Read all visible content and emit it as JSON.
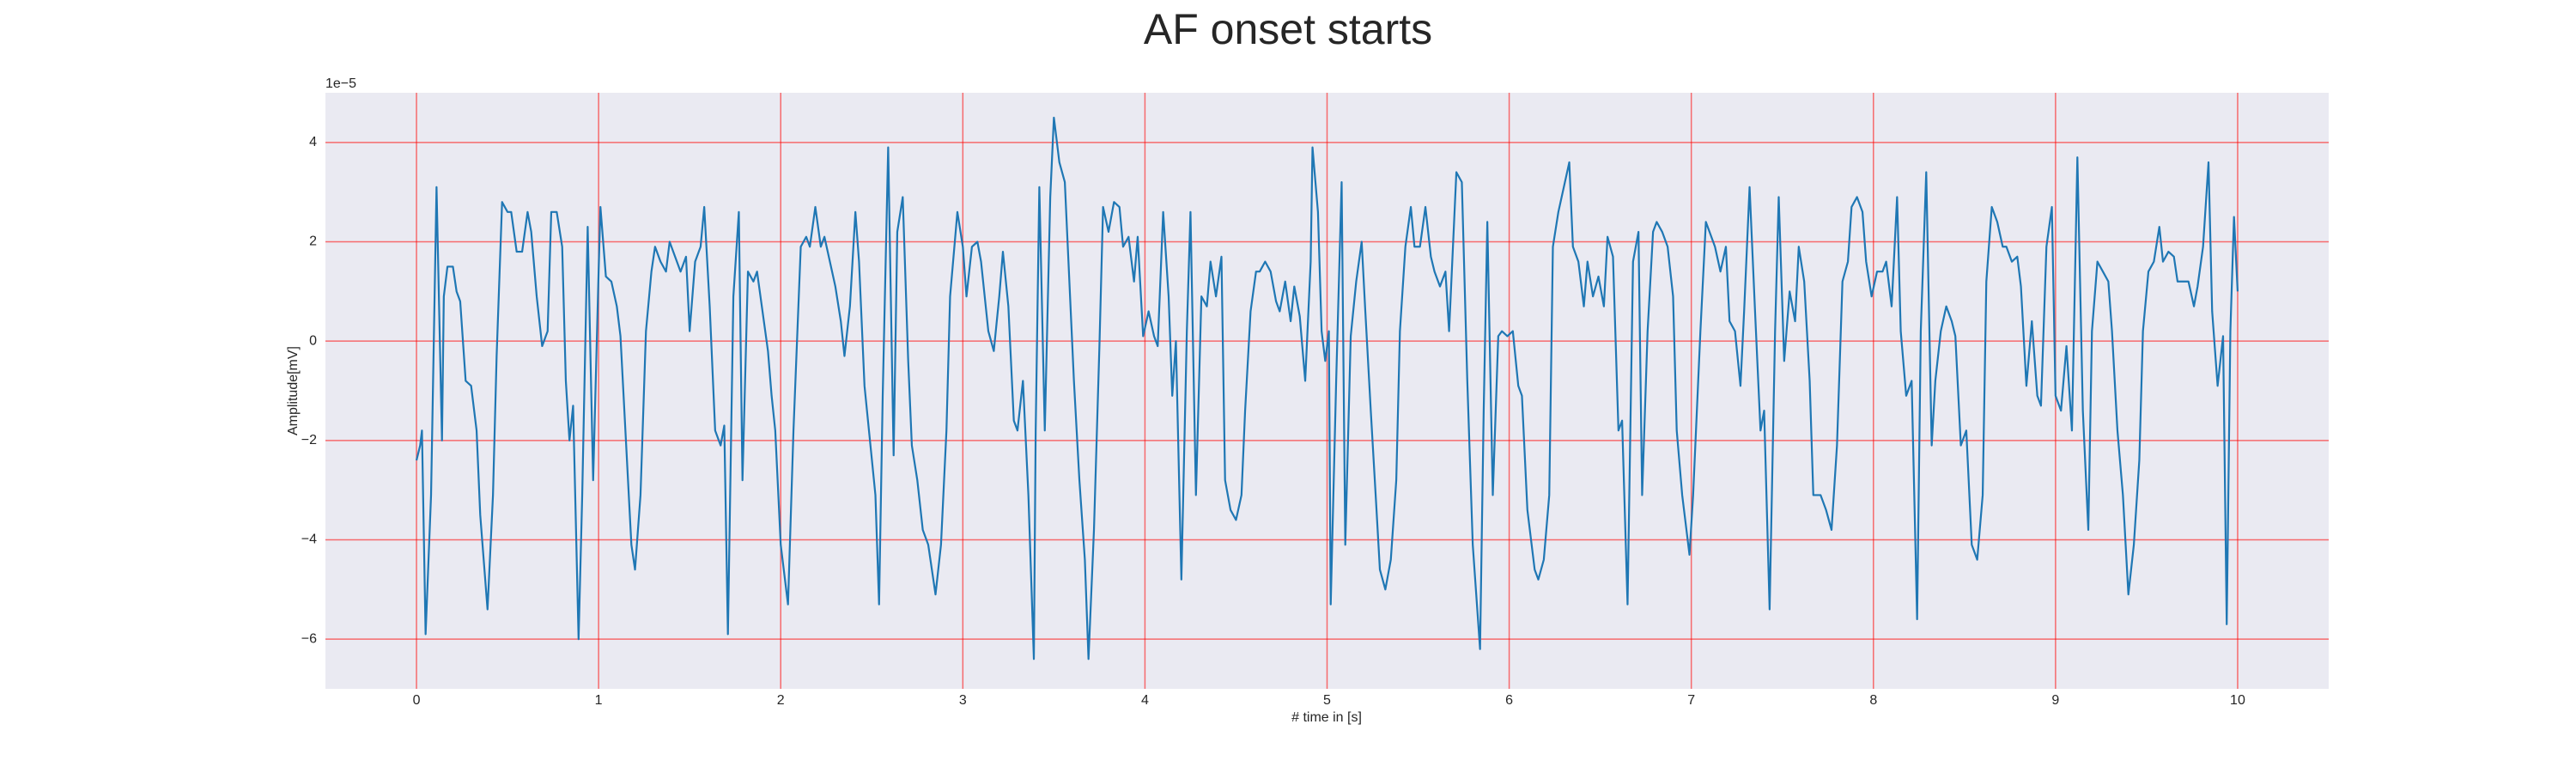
{
  "chart_data": {
    "type": "line",
    "title": "AF onset starts",
    "x_label": "# time in [s]",
    "y_label": "Amplitude[mV]",
    "y_offset_label": "1e−5",
    "color": "#1f77b4",
    "grid": true,
    "grid_color": "#ff0000",
    "xlim": [
      -0.5,
      10.5
    ],
    "xticks": [
      0,
      1,
      2,
      3,
      4,
      5,
      6,
      7,
      8,
      9,
      10
    ],
    "ylim": [
      -7,
      5
    ],
    "yticks": [
      {
        "value": -6,
        "label": "−6"
      },
      {
        "value": -4,
        "label": "−4"
      },
      {
        "value": -2,
        "label": "−2"
      },
      0,
      2,
      4
    ],
    "x": [
      0,
      0.02,
      0.03,
      0.05,
      0.08,
      0.11,
      0.14,
      0.15,
      0.17,
      0.2,
      0.22,
      0.24,
      0.27,
      0.3,
      0.33,
      0.35,
      0.39,
      0.42,
      0.44,
      0.47,
      0.5,
      0.52,
      0.55,
      0.58,
      0.61,
      0.63,
      0.66,
      0.69,
      0.72,
      0.74,
      0.77,
      0.8,
      0.82,
      0.84,
      0.86,
      0.89,
      0.91,
      0.94,
      0.97,
      1.0,
      1.01,
      1.04,
      1.07,
      1.1,
      1.12,
      1.15,
      1.18,
      1.2,
      1.23,
      1.26,
      1.29,
      1.31,
      1.34,
      1.37,
      1.39,
      1.42,
      1.45,
      1.48,
      1.5,
      1.53,
      1.56,
      1.58,
      1.61,
      1.64,
      1.67,
      1.69,
      1.71,
      1.74,
      1.77,
      1.79,
      1.82,
      1.85,
      1.87,
      1.9,
      1.93,
      1.95,
      1.97,
      2.0,
      2.04,
      2.07,
      2.11,
      2.14,
      2.16,
      2.19,
      2.22,
      2.24,
      2.27,
      2.3,
      2.33,
      2.35,
      2.38,
      2.41,
      2.43,
      2.46,
      2.49,
      2.52,
      2.54,
      2.56,
      2.59,
      2.62,
      2.64,
      2.67,
      2.7,
      2.72,
      2.75,
      2.78,
      2.81,
      2.85,
      2.88,
      2.91,
      2.93,
      2.97,
      3.0,
      3.02,
      3.05,
      3.08,
      3.1,
      3.14,
      3.17,
      3.2,
      3.22,
      3.25,
      3.28,
      3.3,
      3.33,
      3.36,
      3.39,
      3.4,
      3.42,
      3.45,
      3.48,
      3.5,
      3.53,
      3.56,
      3.58,
      3.61,
      3.64,
      3.67,
      3.69,
      3.72,
      3.75,
      3.77,
      3.8,
      3.83,
      3.86,
      3.88,
      3.91,
      3.94,
      3.96,
      3.99,
      4.02,
      4.05,
      4.07,
      4.1,
      4.13,
      4.15,
      4.17,
      4.2,
      4.23,
      4.25,
      4.28,
      4.31,
      4.34,
      4.36,
      4.39,
      4.42,
      4.44,
      4.47,
      4.5,
      4.53,
      4.55,
      4.58,
      4.61,
      4.63,
      4.66,
      4.69,
      4.72,
      4.74,
      4.77,
      4.8,
      4.82,
      4.85,
      4.88,
      4.91,
      4.92,
      4.95,
      4.97,
      4.99,
      5.01,
      5.02,
      5.05,
      5.08,
      5.1,
      5.13,
      5.16,
      5.19,
      5.21,
      5.24,
      5.27,
      5.29,
      5.32,
      5.35,
      5.38,
      5.4,
      5.43,
      5.46,
      5.48,
      5.51,
      5.54,
      5.57,
      5.59,
      5.62,
      5.65,
      5.67,
      5.71,
      5.74,
      5.77,
      5.8,
      5.84,
      5.86,
      5.88,
      5.91,
      5.94,
      5.96,
      5.99,
      6.02,
      6.05,
      6.07,
      6.1,
      6.14,
      6.16,
      6.19,
      6.22,
      6.24,
      6.27,
      6.3,
      6.33,
      6.35,
      6.38,
      6.41,
      6.43,
      6.46,
      6.49,
      6.52,
      6.54,
      6.57,
      6.6,
      6.62,
      6.65,
      6.68,
      6.71,
      6.73,
      6.76,
      6.79,
      6.81,
      6.84,
      6.87,
      6.9,
      6.92,
      6.95,
      6.99,
      7.01,
      7.05,
      7.08,
      7.1,
      7.13,
      7.16,
      7.19,
      7.21,
      7.24,
      7.27,
      7.29,
      7.32,
      7.35,
      7.38,
      7.4,
      7.43,
      7.46,
      7.48,
      7.51,
      7.54,
      7.57,
      7.59,
      7.62,
      7.65,
      7.67,
      7.71,
      7.74,
      7.77,
      7.8,
      7.83,
      7.86,
      7.88,
      7.91,
      7.94,
      7.96,
      7.99,
      8.02,
      8.05,
      8.07,
      8.1,
      8.13,
      8.15,
      8.18,
      8.21,
      8.24,
      8.26,
      8.29,
      8.32,
      8.34,
      8.37,
      8.4,
      8.43,
      8.45,
      8.48,
      8.51,
      8.54,
      8.57,
      8.6,
      8.62,
      8.65,
      8.68,
      8.71,
      8.73,
      8.76,
      8.79,
      8.81,
      8.84,
      8.87,
      8.9,
      8.92,
      8.95,
      8.98,
      9.0,
      9.03,
      9.06,
      9.09,
      9.12,
      9.15,
      9.18,
      9.2,
      9.23,
      9.26,
      9.29,
      9.31,
      9.34,
      9.37,
      9.4,
      9.43,
      9.46,
      9.48,
      9.51,
      9.54,
      9.57,
      9.59,
      9.62,
      9.65,
      9.67,
      9.7,
      9.73,
      9.76,
      9.78,
      9.81,
      9.84,
      9.86,
      9.89,
      9.92,
      9.94,
      9.96,
      9.98,
      10
    ],
    "values": [
      -2.4,
      -2.1,
      -1.8,
      -5.9,
      -3.1,
      3.1,
      -2.0,
      0.9,
      1.5,
      1.5,
      1.0,
      0.8,
      -0.8,
      -0.9,
      -1.8,
      -3.5,
      -5.4,
      -3.1,
      -0.3,
      2.8,
      2.6,
      2.6,
      1.8,
      1.8,
      2.6,
      2.2,
      0.9,
      -0.1,
      0.2,
      2.6,
      2.6,
      1.9,
      -0.8,
      -2.0,
      -1.3,
      -6.0,
      -3.1,
      2.3,
      -2.8,
      1.4,
      2.7,
      1.3,
      1.2,
      0.7,
      0.1,
      -2.0,
      -4.1,
      -4.6,
      -3.1,
      0.2,
      1.4,
      1.9,
      1.6,
      1.4,
      2.0,
      1.7,
      1.4,
      1.7,
      0.2,
      1.6,
      1.9,
      2.7,
      0.7,
      -1.8,
      -2.1,
      -1.7,
      -5.9,
      0.9,
      2.6,
      -2.8,
      1.4,
      1.2,
      1.4,
      0.6,
      -0.2,
      -1.1,
      -1.8,
      -4.1,
      -5.3,
      -1.8,
      1.9,
      2.1,
      1.9,
      2.7,
      1.9,
      2.1,
      1.6,
      1.1,
      0.4,
      -0.3,
      0.7,
      2.6,
      1.6,
      -0.9,
      -2.0,
      -3.1,
      -5.3,
      -1.1,
      3.9,
      -2.3,
      2.2,
      2.9,
      -0.4,
      -2.1,
      -2.8,
      -3.8,
      -4.1,
      -5.1,
      -4.1,
      -1.8,
      0.9,
      2.6,
      1.9,
      0.9,
      1.9,
      2.0,
      1.6,
      0.2,
      -0.2,
      0.9,
      1.8,
      0.7,
      -1.6,
      -1.8,
      -0.8,
      -3.1,
      -6.4,
      -1.8,
      3.1,
      -1.8,
      2.9,
      4.5,
      3.6,
      3.2,
      1.6,
      -0.8,
      -2.8,
      -4.4,
      -6.4,
      -3.8,
      -0.1,
      2.7,
      2.2,
      2.8,
      2.7,
      1.9,
      2.1,
      1.2,
      2.1,
      0.1,
      0.6,
      0.1,
      -0.1,
      2.6,
      0.9,
      -1.1,
      0.0,
      -4.8,
      0.2,
      2.6,
      -3.1,
      0.9,
      0.7,
      1.6,
      0.9,
      1.7,
      -2.8,
      -3.4,
      -3.6,
      -3.1,
      -1.4,
      0.6,
      1.4,
      1.4,
      1.6,
      1.4,
      0.8,
      0.6,
      1.2,
      0.4,
      1.1,
      0.5,
      -0.8,
      1.6,
      3.9,
      2.6,
      0.2,
      -0.4,
      0.2,
      -5.3,
      -0.8,
      3.2,
      -4.1,
      0.1,
      1.2,
      2.0,
      0.6,
      -1.4,
      -3.3,
      -4.6,
      -5.0,
      -4.4,
      -2.8,
      0.2,
      1.9,
      2.7,
      1.9,
      1.9,
      2.7,
      1.7,
      1.4,
      1.1,
      1.4,
      0.2,
      3.4,
      3.2,
      -0.8,
      -4.1,
      -6.2,
      -1.4,
      2.4,
      -3.1,
      0.1,
      0.2,
      0.1,
      0.2,
      -0.9,
      -1.1,
      -3.4,
      -4.6,
      -4.8,
      -4.4,
      -3.1,
      1.9,
      2.6,
      3.1,
      3.6,
      1.9,
      1.6,
      0.7,
      1.6,
      0.9,
      1.3,
      0.7,
      2.1,
      1.7,
      -1.8,
      -1.6,
      -5.3,
      1.6,
      2.2,
      -3.1,
      0.2,
      2.2,
      2.4,
      2.2,
      1.9,
      0.9,
      -1.8,
      -3.1,
      -4.3,
      -3.1,
      0.2,
      2.4,
      2.2,
      1.9,
      1.4,
      1.9,
      0.4,
      0.2,
      -0.9,
      0.6,
      3.1,
      0.6,
      -1.8,
      -1.4,
      -5.4,
      0.2,
      2.9,
      -0.4,
      1.0,
      0.4,
      1.9,
      1.2,
      -0.8,
      -3.1,
      -3.1,
      -3.4,
      -3.8,
      -2.1,
      1.2,
      1.6,
      2.7,
      2.9,
      2.6,
      1.6,
      0.9,
      1.4,
      1.4,
      1.6,
      0.7,
      2.9,
      0.2,
      -1.1,
      -0.8,
      -5.6,
      0.2,
      3.4,
      -2.1,
      -0.8,
      0.2,
      0.7,
      0.4,
      0.1,
      -2.1,
      -1.8,
      -4.1,
      -4.4,
      -3.1,
      1.2,
      2.7,
      2.4,
      1.9,
      1.9,
      1.6,
      1.7,
      1.1,
      -0.9,
      0.4,
      -1.1,
      -1.3,
      1.9,
      2.7,
      -1.1,
      -1.4,
      -0.1,
      -1.8,
      3.7,
      -1.4,
      -3.8,
      0.2,
      1.6,
      1.4,
      1.2,
      0.2,
      -1.8,
      -3.1,
      -5.1,
      -4.1,
      -2.4,
      0.2,
      1.4,
      1.6,
      2.3,
      1.6,
      1.8,
      1.7,
      1.2,
      1.2,
      1.2,
      0.7,
      1.1,
      1.9,
      3.6,
      0.6,
      -0.9,
      0.1,
      -5.7,
      0.2,
      2.5,
      1.0
    ]
  }
}
